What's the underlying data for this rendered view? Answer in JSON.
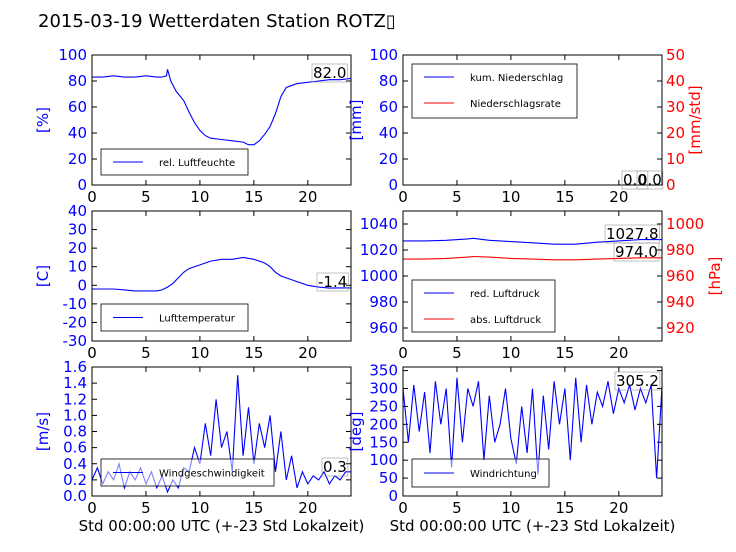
{
  "page_title": "2015-03-19 Wetterdaten Station ROTZ▯",
  "colors": {
    "primary": "#0000ff",
    "secondary": "#ff0000",
    "frame": "#000000"
  },
  "chart_data": [
    {
      "id": "humidity",
      "type": "line",
      "ylabel": "[%]",
      "xlabel": "",
      "xlim": [
        0,
        24
      ],
      "ylim": [
        0,
        100
      ],
      "xticks": [
        0,
        5,
        10,
        15,
        20
      ],
      "yticks": [
        0,
        20,
        40,
        60,
        80,
        100
      ],
      "legend": "bottom-left",
      "value_label": "82.0",
      "series": [
        {
          "name": "rel. Luftfeuchte",
          "color": "#0000ff",
          "x": [
            0,
            1,
            2,
            3,
            4,
            5,
            6,
            6.5,
            6.9,
            7.0,
            7.3,
            7.8,
            8.5,
            9,
            9.5,
            10,
            10.5,
            11,
            12,
            13,
            14,
            14.5,
            15,
            15.5,
            16,
            16.5,
            17,
            17.5,
            18,
            19,
            20,
            21,
            22,
            23,
            24
          ],
          "y": [
            83,
            83,
            84,
            83,
            83,
            84,
            83,
            83,
            84,
            89,
            80,
            72,
            65,
            56,
            48,
            42,
            38,
            36,
            35,
            34,
            33,
            31,
            31,
            34,
            39,
            45,
            55,
            68,
            75,
            78,
            79,
            80,
            81,
            81,
            82
          ]
        }
      ]
    },
    {
      "id": "precipitation",
      "type": "line",
      "ylabel": "[mm]",
      "ylabel2": "[mm/std]",
      "xlabel": "",
      "xlim": [
        0,
        24
      ],
      "ylim": [
        0,
        100
      ],
      "ylim2": [
        0,
        50
      ],
      "xticks": [
        0,
        5,
        10,
        15,
        20
      ],
      "yticks": [
        0,
        20,
        40,
        60,
        80,
        100
      ],
      "yticks2": [
        0,
        10,
        20,
        30,
        40,
        50
      ],
      "legend": "top-left",
      "value_label": "0.0",
      "value_label2": "0.0",
      "series": [
        {
          "name": "kum. Niederschlag",
          "color": "#0000ff",
          "axis": "left",
          "x": [
            0,
            24
          ],
          "y": [
            0,
            0
          ]
        },
        {
          "name": "Niederschlagsrate",
          "color": "#ff0000",
          "axis": "right",
          "x": [
            0,
            24
          ],
          "y": [
            0,
            0
          ]
        }
      ]
    },
    {
      "id": "temperature",
      "type": "line",
      "ylabel": "[C]",
      "xlabel": "",
      "xlim": [
        0,
        24
      ],
      "ylim": [
        -30,
        40
      ],
      "xticks": [
        0,
        5,
        10,
        15,
        20
      ],
      "yticks": [
        -30,
        -20,
        -10,
        0,
        10,
        20,
        30,
        40
      ],
      "legend": "bottom-left",
      "value_label": "-1.4",
      "series": [
        {
          "name": "Lufttemperatur",
          "color": "#0000ff",
          "x": [
            0,
            1,
            2,
            3,
            4,
            5,
            6,
            6.5,
            7,
            7.5,
            8,
            8.5,
            9,
            10,
            11,
            12,
            13,
            14,
            15,
            16,
            16.5,
            17,
            17.5,
            18,
            19,
            20,
            21,
            22,
            23,
            24
          ],
          "y": [
            -2,
            -2,
            -2,
            -2.5,
            -3,
            -3,
            -3,
            -2.5,
            -1,
            1,
            4,
            7,
            9,
            11,
            13,
            14,
            14,
            15,
            14,
            12,
            10,
            7,
            5,
            4,
            2,
            0,
            -1,
            -1.5,
            -1.4,
            -1.4
          ]
        }
      ]
    },
    {
      "id": "pressure",
      "type": "line",
      "ylabel": "[hPa]",
      "xlabel": "",
      "xlim": [
        0,
        24
      ],
      "ylim": [
        950,
        1050
      ],
      "ylim2": [
        910,
        1010
      ],
      "xticks": [
        0,
        5,
        10,
        15,
        20
      ],
      "yticks": [
        960,
        980,
        1000,
        1020,
        1040
      ],
      "yticks2": [
        920,
        940,
        960,
        980,
        1000
      ],
      "legend": "bottom-left",
      "value_label": "1027.8",
      "value_label2": "974.0",
      "series": [
        {
          "name": "red. Luftdruck",
          "color": "#0000ff",
          "axis": "left",
          "x": [
            0,
            2,
            4,
            6,
            6.5,
            8,
            10,
            12,
            14,
            16,
            18,
            20,
            22,
            24
          ],
          "y": [
            1027,
            1027,
            1027.5,
            1028.5,
            1029,
            1027.5,
            1026.5,
            1025.5,
            1024.5,
            1024.5,
            1026,
            1027,
            1028,
            1028
          ]
        },
        {
          "name": "abs. Luftdruck",
          "color": "#ff0000",
          "axis": "right",
          "x": [
            0,
            2,
            4,
            6,
            6.5,
            8,
            10,
            12,
            14,
            16,
            18,
            20,
            22,
            24
          ],
          "y": [
            973,
            973,
            973.5,
            974.5,
            975,
            974.5,
            973.5,
            973,
            972.5,
            972.5,
            973,
            973.5,
            974,
            974
          ]
        }
      ]
    },
    {
      "id": "wind-speed",
      "type": "line",
      "ylabel": "[m/s]",
      "xlabel": "Std 00:00:00 UTC (+-23 Std Lokalzeit)",
      "xlim": [
        0,
        24
      ],
      "ylim": [
        0,
        1.6
      ],
      "xticks": [
        0,
        5,
        10,
        15,
        20
      ],
      "yticks": [
        0.0,
        0.2,
        0.4,
        0.6,
        0.8,
        1.0,
        1.2,
        1.4,
        1.6
      ],
      "ytick_labels": [
        "0.0",
        "0.2",
        "0.4",
        "0.6",
        "0.8",
        "1.0",
        "1.2",
        "1.4",
        "1.6"
      ],
      "legend": "bottom-center",
      "value_label": "0.3",
      "series": [
        {
          "name": "Windgeschwindigkeit",
          "color": "#0000ff",
          "x": [
            0,
            0.5,
            1,
            1.5,
            2,
            2.5,
            3,
            3.5,
            4,
            4.5,
            5,
            5.5,
            6,
            6.5,
            7,
            7.5,
            8,
            8.5,
            9,
            9.5,
            10,
            10.5,
            11,
            11.5,
            12,
            12.5,
            13,
            13.5,
            14,
            14.5,
            15,
            15.5,
            16,
            16.5,
            17,
            17.5,
            18,
            18.5,
            19,
            19.5,
            20,
            20.5,
            21,
            21.5,
            22,
            22.5,
            23,
            23.5,
            24
          ],
          "y": [
            0.2,
            0.35,
            0.15,
            0.3,
            0.2,
            0.4,
            0.1,
            0.3,
            0.2,
            0.35,
            0.15,
            0.3,
            0.1,
            0.25,
            0.05,
            0.2,
            0.1,
            0.35,
            0.3,
            0.6,
            0.4,
            0.9,
            0.5,
            1.2,
            0.6,
            0.8,
            0.3,
            1.5,
            0.5,
            1.1,
            0.4,
            0.9,
            0.6,
            1.0,
            0.3,
            0.8,
            0.2,
            0.5,
            0.1,
            0.3,
            0.15,
            0.25,
            0.2,
            0.3,
            0.15,
            0.25,
            0.2,
            0.3,
            0.3
          ]
        }
      ]
    },
    {
      "id": "wind-direction",
      "type": "line",
      "ylabel": "[deg]",
      "xlabel": "Std 00:00:00 UTC (+-23 Std Lokalzeit)",
      "xlim": [
        0,
        24
      ],
      "ylim": [
        0,
        360
      ],
      "xticks": [
        0,
        5,
        10,
        15,
        20
      ],
      "yticks": [
        0,
        50,
        100,
        150,
        200,
        250,
        300,
        350
      ],
      "legend": "bottom-left",
      "value_label": "305.2",
      "series": [
        {
          "name": "Windrichtung",
          "color": "#0000ff",
          "x": [
            0,
            0.5,
            1,
            1.5,
            2,
            2.5,
            3,
            3.5,
            4,
            4.5,
            5,
            5.5,
            6,
            6.5,
            7,
            7.5,
            8,
            8.5,
            9,
            9.5,
            10,
            10.5,
            11,
            11.5,
            12,
            12.5,
            13,
            13.5,
            14,
            14.5,
            15,
            15.5,
            16,
            16.5,
            17,
            17.5,
            18,
            18.5,
            19,
            19.5,
            20,
            20.5,
            21,
            21.5,
            22,
            22.5,
            23,
            23.5,
            24
          ],
          "y": [
            300,
            150,
            310,
            180,
            290,
            120,
            320,
            200,
            300,
            80,
            330,
            150,
            300,
            250,
            320,
            100,
            280,
            150,
            200,
            300,
            160,
            90,
            250,
            120,
            300,
            60,
            280,
            130,
            320,
            200,
            300,
            100,
            330,
            150,
            310,
            200,
            290,
            250,
            320,
            230,
            300,
            260,
            310,
            240,
            300,
            260,
            310,
            50,
            305
          ]
        }
      ]
    }
  ]
}
